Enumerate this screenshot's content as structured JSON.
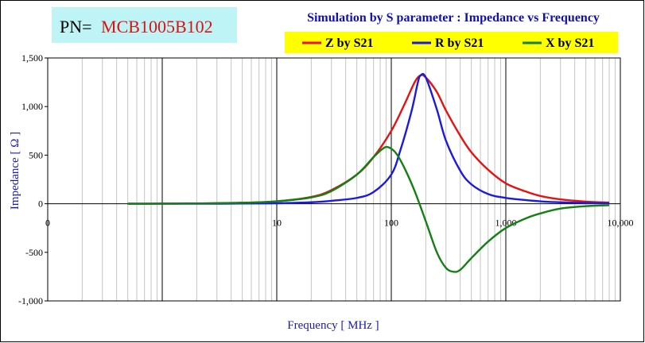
{
  "part_number": {
    "label": "PN=",
    "value": "MCB1005B102"
  },
  "chart_data": {
    "type": "line",
    "title": "Simulation by S parameter : Impedance vs Frequency",
    "xlabel": "Frequency [ MHz ]",
    "ylabel": "Impedance [ Ω ]",
    "xscale": "log",
    "xlim": [
      0.1,
      10000
    ],
    "ylim": [
      -1000,
      1500
    ],
    "x_ticks": [
      {
        "value": 0.1,
        "label": "0"
      },
      {
        "value": 10,
        "label": "10"
      },
      {
        "value": 100,
        "label": "100"
      },
      {
        "value": 1000,
        "label": "1,000"
      },
      {
        "value": 10000,
        "label": "10,000"
      }
    ],
    "y_ticks": [
      {
        "value": 1500,
        "label": "1,500"
      },
      {
        "value": 1000,
        "label": "1,000"
      },
      {
        "value": 500,
        "label": "500"
      },
      {
        "value": 0,
        "label": "0"
      },
      {
        "value": -500,
        "label": "-500"
      },
      {
        "value": -1000,
        "label": "-1,000"
      }
    ],
    "legend_position": "top-right",
    "series": [
      {
        "name": "Z by S21",
        "color": "#e81010",
        "points": [
          [
            0.5,
            0
          ],
          [
            1,
            1
          ],
          [
            2,
            3
          ],
          [
            5,
            10
          ],
          [
            10,
            25
          ],
          [
            20,
            70
          ],
          [
            30,
            140
          ],
          [
            50,
            300
          ],
          [
            70,
            480
          ],
          [
            100,
            750
          ],
          [
            130,
            1020
          ],
          [
            160,
            1250
          ],
          [
            180,
            1320
          ],
          [
            200,
            1300
          ],
          [
            250,
            1150
          ],
          [
            300,
            960
          ],
          [
            400,
            700
          ],
          [
            500,
            530
          ],
          [
            700,
            350
          ],
          [
            1000,
            210
          ],
          [
            1500,
            125
          ],
          [
            2000,
            80
          ],
          [
            3000,
            45
          ],
          [
            5000,
            22
          ],
          [
            8000,
            12
          ]
        ]
      },
      {
        "name": "R by S21",
        "color": "#1a1ae0",
        "points": [
          [
            0.5,
            0
          ],
          [
            1,
            0
          ],
          [
            2,
            0
          ],
          [
            5,
            2
          ],
          [
            10,
            5
          ],
          [
            20,
            15
          ],
          [
            30,
            30
          ],
          [
            50,
            60
          ],
          [
            70,
            120
          ],
          [
            100,
            300
          ],
          [
            120,
            550
          ],
          [
            150,
            950
          ],
          [
            170,
            1240
          ],
          [
            180,
            1320
          ],
          [
            200,
            1300
          ],
          [
            250,
            970
          ],
          [
            300,
            650
          ],
          [
            400,
            340
          ],
          [
            500,
            200
          ],
          [
            700,
            100
          ],
          [
            1000,
            60
          ],
          [
            2000,
            25
          ],
          [
            3000,
            15
          ],
          [
            5000,
            8
          ],
          [
            8000,
            5
          ]
        ]
      },
      {
        "name": "X by S21",
        "color": "#128012",
        "points": [
          [
            0.5,
            0
          ],
          [
            1,
            1
          ],
          [
            2,
            3
          ],
          [
            5,
            10
          ],
          [
            10,
            25
          ],
          [
            20,
            65
          ],
          [
            30,
            130
          ],
          [
            50,
            300
          ],
          [
            70,
            480
          ],
          [
            85,
            570
          ],
          [
            95,
            580
          ],
          [
            110,
            520
          ],
          [
            130,
            370
          ],
          [
            160,
            130
          ],
          [
            200,
            -180
          ],
          [
            250,
            -500
          ],
          [
            300,
            -660
          ],
          [
            350,
            -700
          ],
          [
            400,
            -680
          ],
          [
            500,
            -560
          ],
          [
            700,
            -390
          ],
          [
            1000,
            -250
          ],
          [
            1500,
            -150
          ],
          [
            2000,
            -100
          ],
          [
            3000,
            -50
          ],
          [
            5000,
            -25
          ],
          [
            8000,
            -15
          ]
        ]
      }
    ]
  }
}
